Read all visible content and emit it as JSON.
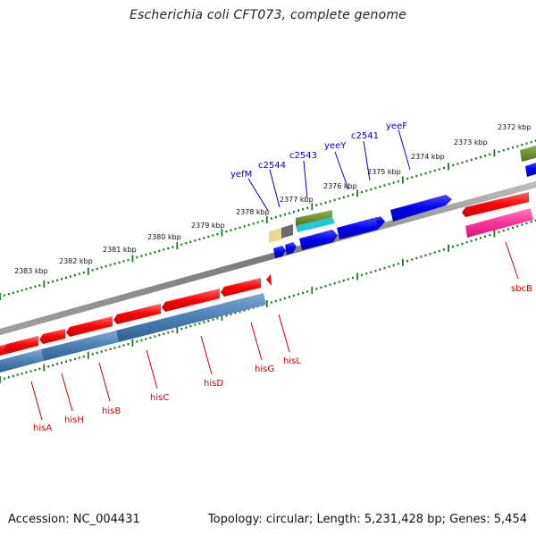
{
  "title": "Escherichia coli CFT073, complete genome",
  "footer": {
    "accession": "Accession: NC_004431",
    "summary": "Topology: circular; Length: 5,231,428 bp; Genes: 5,454"
  },
  "colors": {
    "background": "#ffffff",
    "backbone": "#888888",
    "gene_red": "#ff0000",
    "gene_blue": "#0000ee",
    "gene_steelblue": "#4a7fb5",
    "gene_olive": "#6b8e23",
    "gene_cyan": "#20c8d8",
    "gene_khaki": "#e8dc8a",
    "gene_gray": "#6b6b6b",
    "gene_pink": "#ff3399",
    "tick_green": "#1a7a1a",
    "label_blue": "#0000cc",
    "label_red": "#cc0000"
  },
  "scale_labels": [
    "2383 kbp",
    "2382 kbp",
    "2381 kbp",
    "2380 kbp",
    "2379 kbp",
    "2378 kbp",
    "2377 kbp",
    "2376 kbp",
    "2375 kbp",
    "2374 kbp",
    "2373 kbp",
    "2372 kbp"
  ],
  "forward_gene_labels": [
    "yefM",
    "c2544",
    "c2543",
    "yeeY",
    "c2541",
    "yeeF"
  ],
  "reverse_gene_labels": [
    "hisA",
    "hisH",
    "hisB",
    "hisC",
    "hisD",
    "hisG",
    "hisL",
    "sbcB"
  ]
}
